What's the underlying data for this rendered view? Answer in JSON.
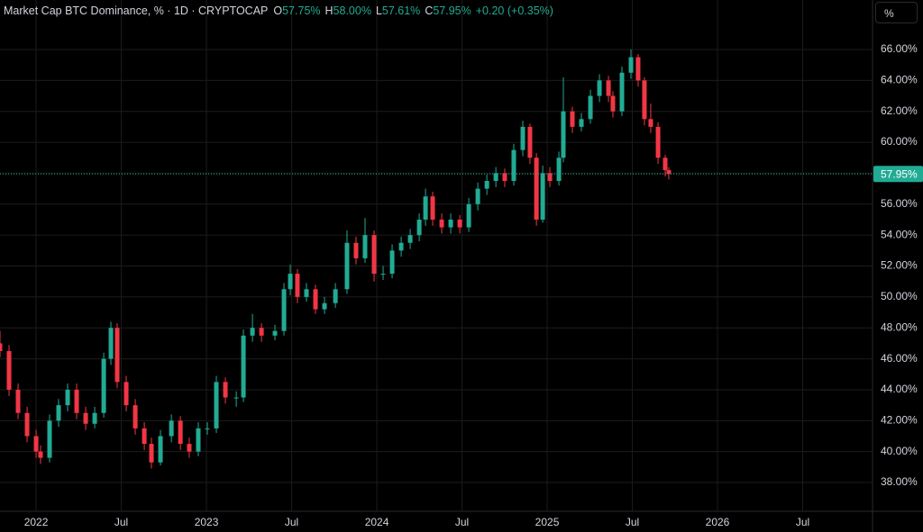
{
  "chart_data": {
    "type": "candlestick",
    "title": "Market Cap BTC Dominance, % · 1D · CRYPTOCAP",
    "ohlc_header": [
      {
        "label": "O",
        "value": "57.75%"
      },
      {
        "label": "H",
        "value": "58.00%"
      },
      {
        "label": "L",
        "value": "57.61%"
      },
      {
        "label": "C",
        "value": "57.95%"
      }
    ],
    "change": "+0.20 (+0.35%)",
    "scale_button": "%",
    "up_color": "#22ab94",
    "down_color": "#f23645",
    "grid": true,
    "xlim": [
      2021.788,
      2026.91
    ],
    "xticks": [
      {
        "value": 2022,
        "label": "2022"
      },
      {
        "value": 2022.5,
        "label": "Jul"
      },
      {
        "value": 2023,
        "label": "2023"
      },
      {
        "value": 2023.5,
        "label": "Jul"
      },
      {
        "value": 2024,
        "label": "2024"
      },
      {
        "value": 2024.5,
        "label": "Jul"
      },
      {
        "value": 2025,
        "label": "2025"
      },
      {
        "value": 2025.5,
        "label": "Jul"
      },
      {
        "value": 2026,
        "label": "2026"
      },
      {
        "value": 2026.5,
        "label": "Jul"
      }
    ],
    "ylim": [
      36.14,
      69.2
    ],
    "yticks": [
      {
        "value": 38,
        "label": "38.00%"
      },
      {
        "value": 40,
        "label": "40.00%"
      },
      {
        "value": 42,
        "label": "42.00%"
      },
      {
        "value": 44,
        "label": "44.00%"
      },
      {
        "value": 46,
        "label": "46.00%"
      },
      {
        "value": 48,
        "label": "48.00%"
      },
      {
        "value": 50,
        "label": "50.00%"
      },
      {
        "value": 52,
        "label": "52.00%"
      },
      {
        "value": 54,
        "label": "54.00%"
      },
      {
        "value": 56,
        "label": "56.00%"
      },
      {
        "value": 58,
        "label": "58.00%"
      },
      {
        "value": 60,
        "label": "60.00%"
      },
      {
        "value": 62,
        "label": "62.00%"
      },
      {
        "value": 64,
        "label": "64.00%"
      },
      {
        "value": 66,
        "label": "66.00%"
      }
    ],
    "last_price": {
      "value": 57.95,
      "label": "57.95%"
    },
    "x": [
      2021.788,
      2021.841,
      2021.894,
      2021.947,
      2022.0,
      2022.026,
      2022.079,
      2022.132,
      2022.185,
      2022.238,
      2022.291,
      2022.344,
      2022.397,
      2022.439,
      2022.476,
      2022.529,
      2022.582,
      2022.635,
      2022.677,
      2022.73,
      2022.794,
      2022.847,
      2022.899,
      2022.952,
      2023.005,
      2023.058,
      2023.111,
      2023.175,
      2023.217,
      2023.27,
      2023.323,
      2023.402,
      2023.455,
      2023.492,
      2023.534,
      2023.587,
      2023.64,
      2023.693,
      2023.757,
      2023.825,
      2023.878,
      2023.931,
      2023.984,
      2024.037,
      2024.09,
      2024.143,
      2024.196,
      2024.249,
      2024.286,
      2024.328,
      2024.381,
      2024.434,
      2024.487,
      2024.54,
      2024.593,
      2024.646,
      2024.699,
      2024.751,
      2024.804,
      2024.857,
      2024.899,
      2024.937,
      2024.974,
      2025.016,
      2025.069,
      2025.095,
      2025.148,
      2025.201,
      2025.254,
      2025.307,
      2025.36,
      2025.386,
      2025.439,
      2025.492,
      2025.534,
      2025.571,
      2025.608,
      2025.651,
      2025.693,
      2025.714
    ],
    "open": [
      47,
      46.5,
      44,
      42.5,
      41,
      40,
      39.6,
      42,
      43,
      44,
      42.5,
      41.8,
      42.5,
      46,
      48,
      44.5,
      43,
      41.5,
      40.5,
      39.3,
      41,
      42,
      40.5,
      40,
      41.5,
      41.5,
      44.5,
      43.5,
      43.5,
      47.5,
      48,
      47.5,
      47.8,
      50.5,
      51.5,
      50,
      50.5,
      49.2,
      49.6,
      50.5,
      53.5,
      52.5,
      54,
      51.5,
      51.5,
      53,
      53.5,
      54,
      55,
      56.5,
      55,
      54.5,
      55,
      54.5,
      56,
      57,
      57.5,
      58,
      57.5,
      59.5,
      61,
      59,
      55,
      58,
      57.5,
      59,
      62,
      61,
      61.5,
      63,
      64,
      63,
      62,
      64.5,
      65.5,
      64,
      61.5,
      61,
      59,
      58.2
    ],
    "high": [
      47.8,
      46.9,
      44.4,
      42.9,
      41.4,
      40.4,
      42.4,
      43.4,
      44.4,
      44.4,
      42.9,
      42.9,
      46.4,
      48.4,
      48.3,
      44.9,
      43.4,
      41.9,
      40.9,
      41.4,
      42.4,
      42.3,
      40.9,
      41.9,
      41.9,
      44.9,
      44.8,
      43.9,
      47.9,
      48.9,
      48.3,
      48.2,
      50.9,
      52.1,
      51.8,
      50.9,
      50.8,
      50,
      50.9,
      54.3,
      53.9,
      55.1,
      54.3,
      52,
      53.4,
      53.9,
      54.4,
      55.4,
      57,
      56.8,
      55.4,
      55.4,
      55.3,
      56.4,
      57.4,
      57.9,
      58.4,
      58.3,
      59.9,
      61.4,
      61.2,
      59.3,
      58.5,
      58.4,
      59.4,
      64.2,
      62.3,
      61.9,
      63.4,
      64.4,
      64.3,
      63.3,
      64.9,
      66,
      65.7,
      64.2,
      62.5,
      61.3,
      59.2,
      58.4
    ],
    "low": [
      46.1,
      43.6,
      42.1,
      40.6,
      39.6,
      39.2,
      39.3,
      41.6,
      42.6,
      42.1,
      41.4,
      41.5,
      42.2,
      45.6,
      44.1,
      42.6,
      41.1,
      40.1,
      38.9,
      39.1,
      40.6,
      40.1,
      39.6,
      39.7,
      41.1,
      41.2,
      43.1,
      42.9,
      43.2,
      47.1,
      47.1,
      47.2,
      47.5,
      50.1,
      49.6,
      49.7,
      48.9,
      48.9,
      49.3,
      50.2,
      52.1,
      52.2,
      51,
      51.1,
      51.2,
      52.6,
      53.1,
      53.6,
      54.6,
      54.6,
      54.1,
      54.1,
      54.1,
      54.2,
      55.6,
      56.6,
      57.1,
      57.1,
      57.2,
      59.1,
      58.6,
      54.6,
      54.8,
      57.1,
      57.2,
      58.7,
      60.6,
      60.7,
      61.2,
      62.6,
      62.6,
      61.6,
      61.7,
      64.1,
      63.6,
      61.1,
      60.6,
      58.6,
      57.8,
      57.6
    ],
    "close": [
      46.5,
      44,
      42.5,
      41,
      40,
      39.6,
      42,
      43,
      44,
      42.5,
      41.8,
      42.5,
      46,
      48,
      44.5,
      43,
      41.5,
      40.5,
      39.3,
      41,
      42,
      40.5,
      40,
      41.5,
      41.5,
      44.5,
      43.5,
      43.5,
      47.5,
      48,
      47.5,
      47.8,
      50.5,
      51.5,
      50,
      50.5,
      49.2,
      49.6,
      50.5,
      53.5,
      52.5,
      54,
      51.5,
      51.5,
      53,
      53.5,
      54,
      55,
      56.5,
      55,
      54.5,
      55,
      54.5,
      56,
      57,
      57.5,
      58,
      57.5,
      59.5,
      61,
      59,
      55,
      58,
      57.5,
      59,
      62,
      61,
      61.5,
      63,
      64,
      63,
      62,
      64.5,
      65.5,
      64,
      61.5,
      61,
      59,
      58.2,
      57.95
    ]
  }
}
